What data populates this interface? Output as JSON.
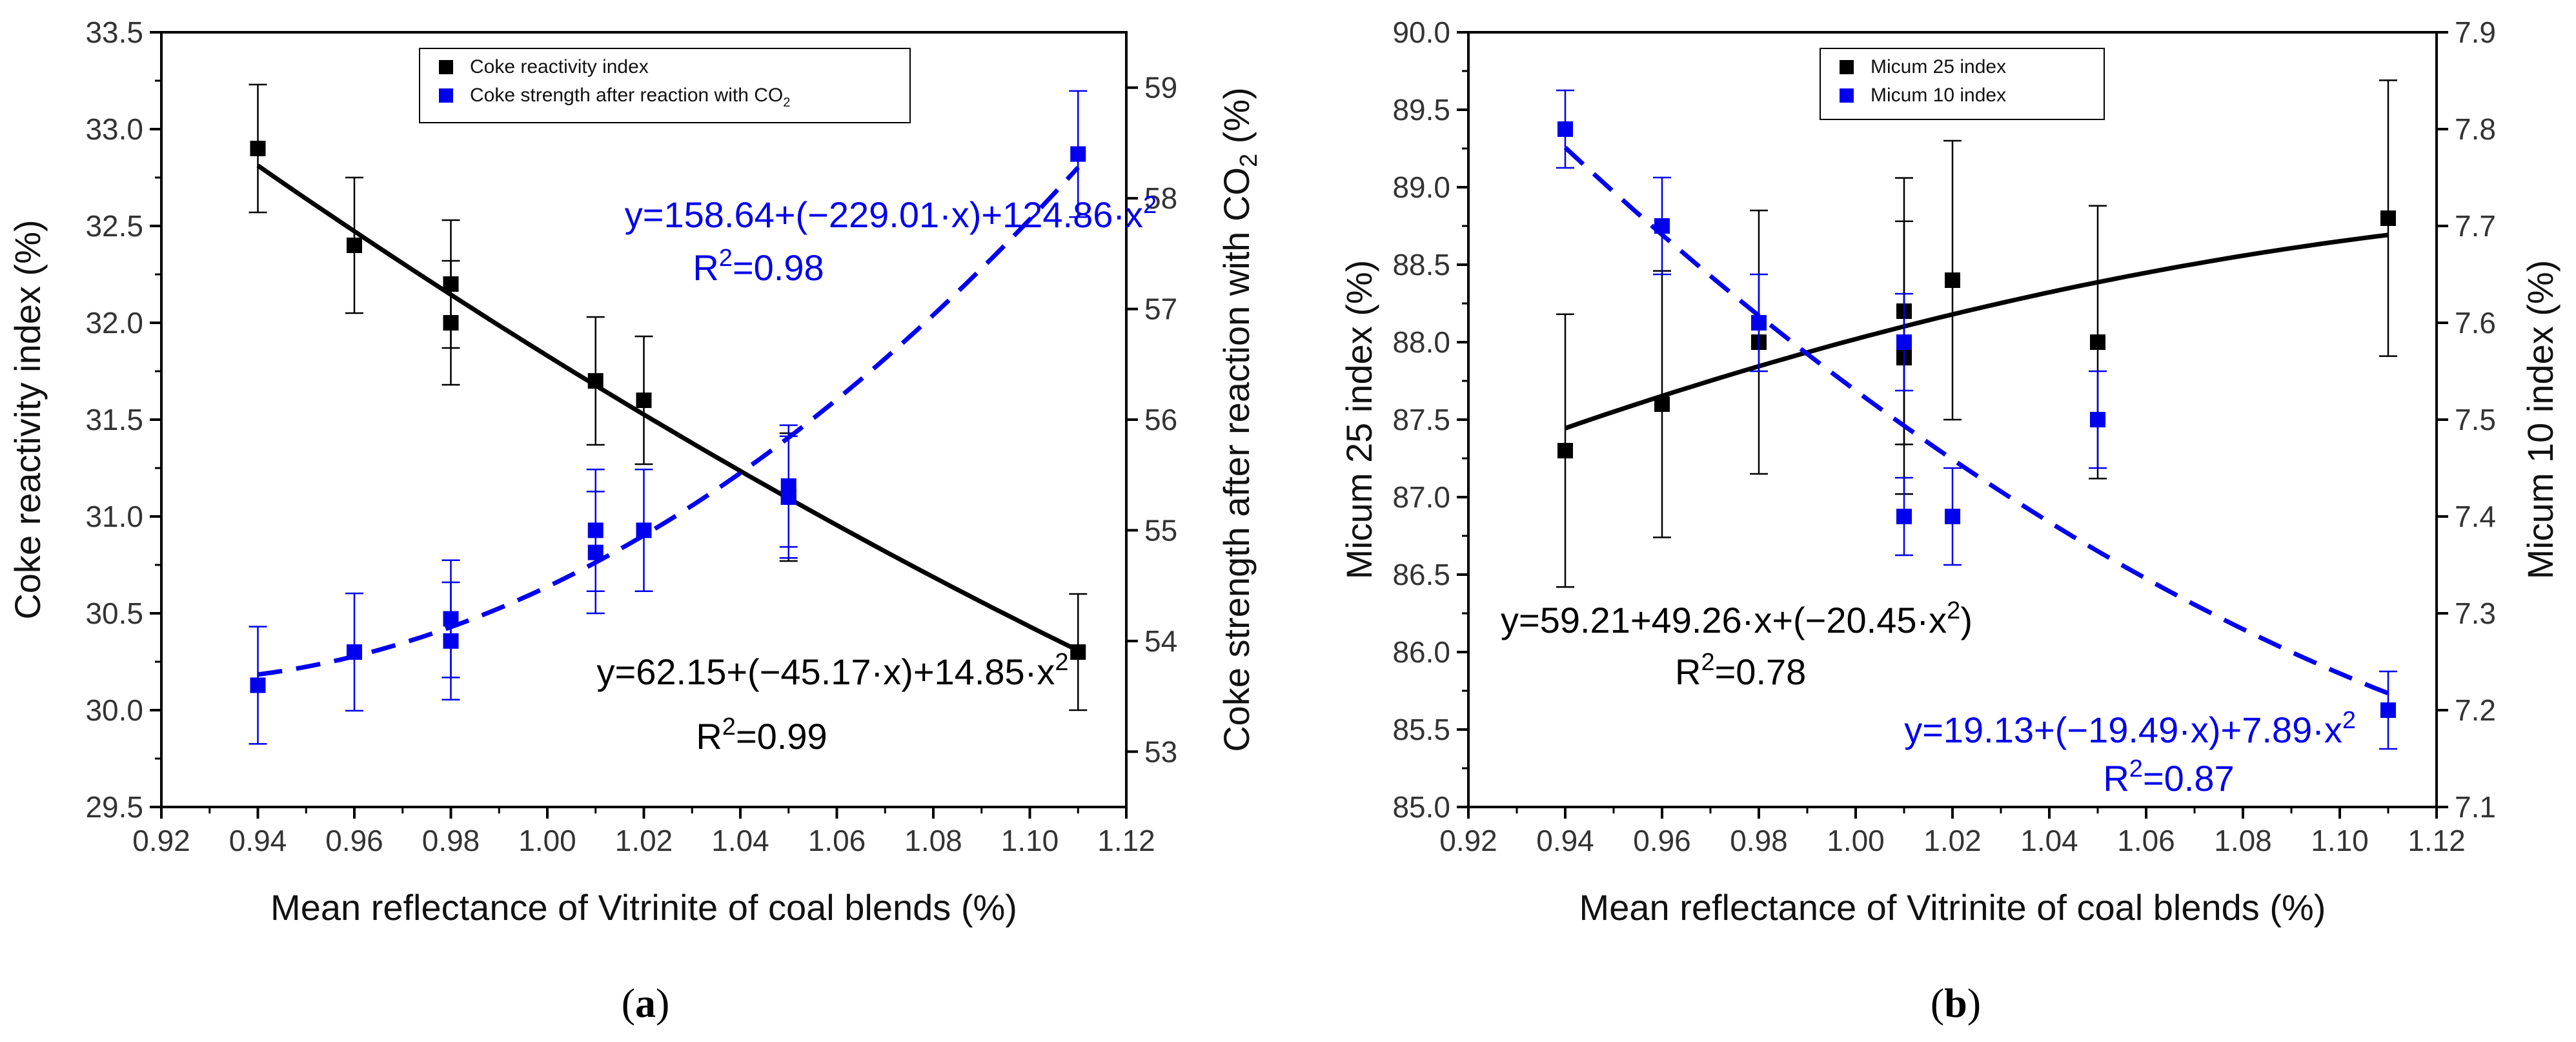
{
  "chart_data": [
    {
      "type": "scatter",
      "caption_paren_open": "(",
      "caption_letter": "a",
      "caption_paren_close": ")",
      "xlabel": "Mean reflectance of Vitrinite of coal blends (%)",
      "xlim": [
        0.92,
        1.12
      ],
      "xticks": [
        "0.92",
        "0.94",
        "0.96",
        "0.98",
        "1.00",
        "1.02",
        "1.04",
        "1.06",
        "1.08",
        "1.10",
        "1.12"
      ],
      "y_left": {
        "label": "Coke reactivity index (%)",
        "lim": [
          29.5,
          33.5
        ],
        "ticks": [
          "29.5",
          "30.0",
          "30.5",
          "31.0",
          "31.5",
          "32.0",
          "32.5",
          "33.0",
          "33.5"
        ]
      },
      "y_right": {
        "label_main": "Coke strength after reaction with CO",
        "label_sub": "2",
        "label_end": " (%)",
        "lim": [
          52.5,
          59.5
        ],
        "ticks": [
          "53",
          "54",
          "55",
          "56",
          "57",
          "58",
          "59"
        ]
      },
      "legend": [
        {
          "label": "Coke reactivity index",
          "color": "#000000"
        },
        {
          "label_main": "Coke strength after reaction with CO",
          "label_sub": "2",
          "color": "#0000ee"
        }
      ],
      "series": [
        {
          "name": "Coke reactivity index",
          "axis": "left",
          "color": "#000000",
          "x": [
            0.94,
            0.96,
            0.98,
            0.98,
            1.01,
            1.02,
            1.05,
            1.11
          ],
          "y": [
            32.9,
            32.4,
            32.2,
            32.0,
            31.7,
            31.6,
            31.1,
            30.3
          ],
          "err": [
            0.33,
            0.35,
            0.33,
            0.32,
            0.33,
            0.33,
            0.33,
            0.3
          ],
          "fit": {
            "c0": 62.15,
            "c1": -45.17,
            "c2": 14.85,
            "style": "solid"
          }
        },
        {
          "name": "Coke strength after reaction with CO2",
          "axis": "right",
          "color": "#0000ee",
          "x": [
            0.94,
            0.96,
            0.98,
            0.98,
            1.01,
            1.01,
            1.02,
            1.05,
            1.05,
            1.11
          ],
          "y": [
            53.6,
            53.9,
            54.2,
            54.0,
            55.0,
            54.8,
            55.0,
            55.4,
            55.3,
            58.4
          ],
          "err": [
            0.53,
            0.53,
            0.53,
            0.53,
            0.55,
            0.55,
            0.55,
            0.55,
            0.55,
            0.57
          ],
          "fit": {
            "c0": 158.64,
            "c1": -229.01,
            "c2": 124.86,
            "style": "dashed"
          }
        }
      ],
      "equations": [
        {
          "text": "y=158.64+(−229.01·x)+124.86·x",
          "sup": "2",
          "color": "#0000ee"
        },
        {
          "text": "R",
          "sup": "2",
          "tail": "=0.98",
          "color": "#0000ee"
        },
        {
          "text": "y=62.15+(−45.17·x)+14.85·x",
          "sup": "2",
          "color": "#000000"
        },
        {
          "text": "R",
          "sup": "2",
          "tail": "=0.99",
          "color": "#000000"
        }
      ]
    },
    {
      "type": "scatter",
      "caption_paren_open": "(",
      "caption_letter": "b",
      "caption_paren_close": ")",
      "xlabel": "Mean reflectance of Vitrinite of coal blends (%)",
      "xlim": [
        0.92,
        1.12
      ],
      "xticks": [
        "0.92",
        "0.94",
        "0.96",
        "0.98",
        "1.00",
        "1.02",
        "1.04",
        "1.06",
        "1.08",
        "1.10",
        "1.12"
      ],
      "y_left": {
        "label": "Micum 25 index (%)",
        "lim": [
          85.0,
          90.0
        ],
        "ticks": [
          "85.0",
          "85.5",
          "86.0",
          "86.5",
          "87.0",
          "87.5",
          "88.0",
          "88.5",
          "89.0",
          "89.5",
          "90.0"
        ]
      },
      "y_right": {
        "label": "Micum 10 index (%)",
        "lim": [
          7.1,
          7.9
        ],
        "ticks": [
          "7.1",
          "7.2",
          "7.3",
          "7.4",
          "7.5",
          "7.6",
          "7.7",
          "7.8",
          "7.9"
        ]
      },
      "legend": [
        {
          "label": "Micum 25 index",
          "color": "#000000"
        },
        {
          "label": "Micum 10 index",
          "color": "#0000ee"
        }
      ],
      "series": [
        {
          "name": "Micum 25 index",
          "axis": "left",
          "color": "#000000",
          "x": [
            0.94,
            0.96,
            0.98,
            1.01,
            1.01,
            1.02,
            1.05,
            1.11
          ],
          "y": [
            87.3,
            87.6,
            88.0,
            87.9,
            88.2,
            88.4,
            88.0,
            88.8
          ],
          "err": [
            0.88,
            0.86,
            0.85,
            0.88,
            0.86,
            0.9,
            0.88,
            0.89
          ],
          "fit": {
            "c0": 59.21,
            "c1": 49.26,
            "c2": -20.45,
            "style": "solid"
          }
        },
        {
          "name": "Micum 10 index",
          "axis": "right",
          "color": "#0000ee",
          "x": [
            0.94,
            0.96,
            0.98,
            1.01,
            1.01,
            1.02,
            1.05,
            1.11
          ],
          "y": [
            7.8,
            7.7,
            7.6,
            7.4,
            7.58,
            7.4,
            7.5,
            7.2
          ],
          "err": [
            0.04,
            0.05,
            0.05,
            0.04,
            0.05,
            0.05,
            0.05,
            0.04
          ],
          "fit": {
            "c0": 19.13,
            "c1": -19.49,
            "c2": 7.89,
            "style": "dashed"
          }
        }
      ],
      "equations": [
        {
          "text": "y=59.21+49.26·x+(−20.45·x",
          "sup": "2",
          "tail": ")",
          "color": "#000000"
        },
        {
          "text": "R",
          "sup": "2",
          "tail": "=0.78",
          "color": "#000000"
        },
        {
          "text": "y=19.13+(−19.49·x)+7.89·x",
          "sup": "2",
          "color": "#0000ee"
        },
        {
          "text": "R",
          "sup": "2",
          "tail": "=0.87",
          "color": "#0000ee"
        }
      ]
    }
  ]
}
